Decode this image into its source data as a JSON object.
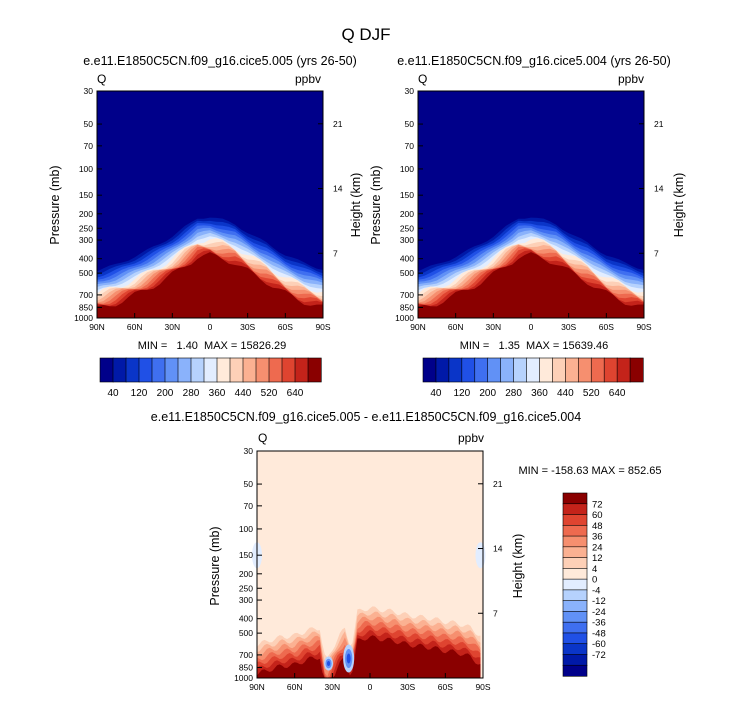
{
  "title": "Q DJF",
  "colors": {
    "seq": [
      "#00008a",
      "#0019a8",
      "#0a35c8",
      "#2050e6",
      "#3f6ff0",
      "#6191f6",
      "#8ab2fb",
      "#b6d2fd",
      "#e2edff",
      "#ffeada",
      "#fdd0b7",
      "#fbb192",
      "#f68f6f",
      "#ee6a4f",
      "#df4430",
      "#c4231a",
      "#8a0000"
    ],
    "div": [
      "#00008a",
      "#0019a8",
      "#0a35c8",
      "#2050e6",
      "#3f6ff0",
      "#6191f6",
      "#8ab2fb",
      "#b6d2fd",
      "#e2edff",
      "#ffeada",
      "#fdd0b7",
      "#fbb192",
      "#f68f6f",
      "#ee6a4f",
      "#df4430",
      "#c4231a",
      "#8a0000"
    ]
  },
  "chart_data": [
    {
      "type": "heatmap",
      "title": "e.e11.E1850C5CN.f09_g16.cice5.005 (yrs 26-50)",
      "left_label": "Q",
      "right_label": "ppbv",
      "xlabel": "",
      "ylabel": "Pressure (mb)",
      "ylabel_right": "Height (km)",
      "x_ticks": [
        "90N",
        "60N",
        "30N",
        "0",
        "30S",
        "60S",
        "90S"
      ],
      "x_tick_values": [
        90,
        60,
        30,
        0,
        -30,
        -60,
        -90
      ],
      "y_ticks": [
        "30",
        "50",
        "70",
        "100",
        "150",
        "200",
        "250",
        "300",
        "400",
        "500",
        "700",
        "850",
        "1000"
      ],
      "y_tick_values": [
        30,
        50,
        70,
        100,
        150,
        200,
        250,
        300,
        400,
        500,
        700,
        850,
        1000
      ],
      "y_right_ticks": [
        "21",
        "14",
        "7"
      ],
      "y_right_values": [
        21,
        14,
        7
      ],
      "xlim": [
        90,
        -90
      ],
      "ylim": [
        1000,
        30
      ],
      "stats": "MIN =   1.40  MAX = 15826.29",
      "colorbar_labels": [
        "40",
        "120",
        "200",
        "280",
        "360",
        "440",
        "520",
        "640"
      ],
      "colorbar_levels": [
        20,
        40,
        80,
        120,
        160,
        200,
        240,
        280,
        320,
        360,
        400,
        440,
        480,
        520,
        560,
        640
      ],
      "profile_lat": [
        90,
        75,
        60,
        45,
        30,
        20,
        10,
        0,
        -10,
        -20,
        -30,
        -45,
        -60,
        -75,
        -90
      ],
      "profile_tropopause_mb": [
        460,
        420,
        370,
        320,
        270,
        235,
        205,
        200,
        210,
        225,
        255,
        300,
        360,
        410,
        450
      ]
    },
    {
      "type": "heatmap",
      "title": "e.e11.E1850C5CN.f09_g16.cice5.004 (yrs 26-50)",
      "left_label": "Q",
      "right_label": "ppbv",
      "xlabel": "",
      "ylabel": "Pressure (mb)",
      "ylabel_right": "Height (km)",
      "x_ticks": [
        "90N",
        "60N",
        "30N",
        "0",
        "30S",
        "60S",
        "90S"
      ],
      "x_tick_values": [
        90,
        60,
        30,
        0,
        -30,
        -60,
        -90
      ],
      "y_ticks": [
        "30",
        "50",
        "70",
        "100",
        "150",
        "200",
        "250",
        "300",
        "400",
        "500",
        "700",
        "850",
        "1000"
      ],
      "y_tick_values": [
        30,
        50,
        70,
        100,
        150,
        200,
        250,
        300,
        400,
        500,
        700,
        850,
        1000
      ],
      "y_right_ticks": [
        "21",
        "14",
        "7"
      ],
      "y_right_values": [
        21,
        14,
        7
      ],
      "xlim": [
        90,
        -90
      ],
      "ylim": [
        1000,
        30
      ],
      "stats": "MIN =   1.35  MAX = 15639.46",
      "colorbar_labels": [
        "40",
        "120",
        "200",
        "280",
        "360",
        "440",
        "520",
        "640"
      ],
      "colorbar_levels": [
        20,
        40,
        80,
        120,
        160,
        200,
        240,
        280,
        320,
        360,
        400,
        440,
        480,
        520,
        560,
        640
      ],
      "profile_lat": [
        90,
        75,
        60,
        45,
        30,
        20,
        10,
        0,
        -10,
        -20,
        -30,
        -45,
        -60,
        -75,
        -90
      ],
      "profile_tropopause_mb": [
        460,
        420,
        370,
        320,
        270,
        235,
        205,
        200,
        210,
        225,
        255,
        300,
        360,
        410,
        450
      ]
    },
    {
      "type": "heatmap",
      "title": "e.e11.E1850C5CN.f09_g16.cice5.005 - e.e11.E1850C5CN.f09_g16.cice5.004",
      "left_label": "Q",
      "right_label": "ppbv",
      "xlabel": "",
      "ylabel": "Pressure (mb)",
      "ylabel_right": "Height (km)",
      "x_ticks": [
        "90N",
        "60N",
        "30N",
        "0",
        "30S",
        "60S",
        "90S"
      ],
      "x_tick_values": [
        90,
        60,
        30,
        0,
        -30,
        -60,
        -90
      ],
      "y_ticks": [
        "30",
        "50",
        "70",
        "100",
        "150",
        "200",
        "250",
        "300",
        "400",
        "500",
        "700",
        "850",
        "1000"
      ],
      "y_tick_values": [
        30,
        50,
        70,
        100,
        150,
        200,
        250,
        300,
        400,
        500,
        700,
        850,
        1000
      ],
      "y_right_ticks": [
        "21",
        "14",
        "7"
      ],
      "y_right_values": [
        21,
        14,
        7
      ],
      "xlim": [
        90,
        -90
      ],
      "ylim": [
        1000,
        30
      ],
      "stats": "MIN = -158.63  MAX = 852.65",
      "colorbar_labels": [
        "72",
        "60",
        "48",
        "36",
        "24",
        "12",
        "4",
        "0",
        "-4",
        "-12",
        "-24",
        "-36",
        "-48",
        "-60",
        "-72"
      ],
      "colorbar_levels": [
        72,
        60,
        48,
        36,
        24,
        12,
        4,
        0,
        -4,
        -12,
        -24,
        -36,
        -48,
        -60,
        -72
      ],
      "diff_lat": [
        90,
        80,
        70,
        60,
        50,
        40,
        35,
        30,
        25,
        20,
        15,
        10,
        5,
        0,
        -10,
        -20,
        -30,
        -40,
        -50,
        -60,
        -70,
        -80,
        -88
      ],
      "diff_base_mb": [
        600,
        560,
        530,
        520,
        480,
        460,
        780,
        640,
        520,
        470,
        620,
        360,
        345,
        340,
        350,
        360,
        380,
        390,
        400,
        420,
        430,
        460,
        520
      ]
    }
  ]
}
